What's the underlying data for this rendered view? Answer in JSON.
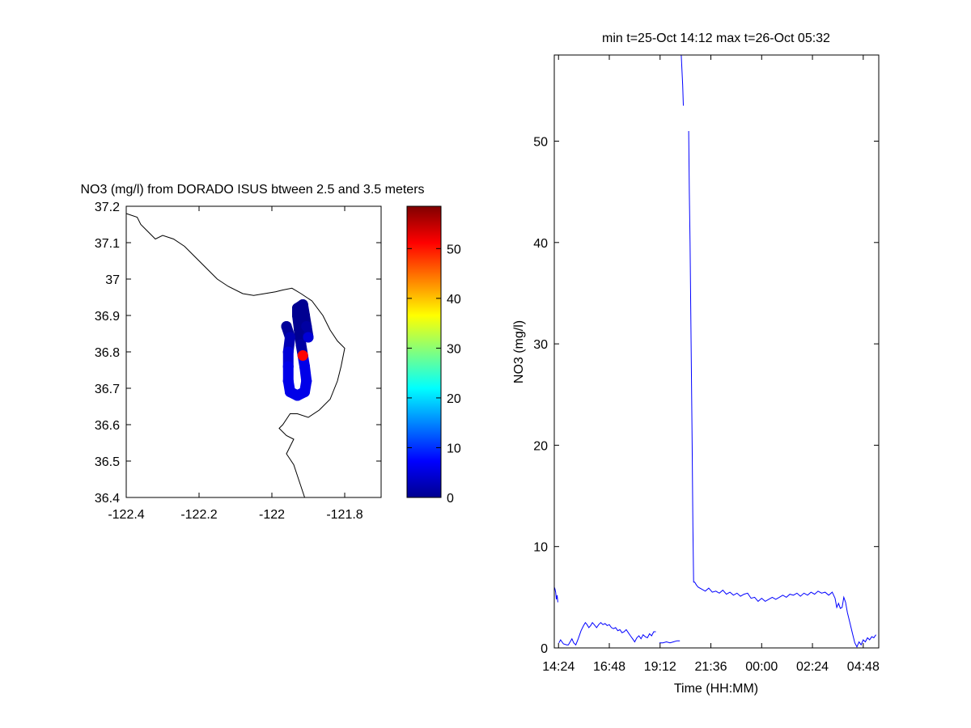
{
  "chart_data": [
    {
      "type": "scatter",
      "title": "NO3 (mg/l) from DORADO ISUS btween 2.5 and 3.5 meters",
      "xlabel": "",
      "ylabel": "",
      "xlim": [
        -122.4,
        -121.7
      ],
      "ylim": [
        36.4,
        37.2
      ],
      "xticks": [
        -122.4,
        -122.2,
        -122.0,
        -121.8
      ],
      "xtick_labels": [
        "-122.4",
        "-122.2",
        "-122",
        "-121.8"
      ],
      "yticks": [
        36.4,
        36.5,
        36.6,
        36.7,
        36.8,
        36.9,
        37.0,
        37.1,
        37.2
      ],
      "ytick_labels": [
        "36.4",
        "36.5",
        "36.6",
        "36.7",
        "36.8",
        "36.9",
        "37",
        "37.1",
        "37.2"
      ],
      "coastline": [
        [
          -122.4,
          37.18
        ],
        [
          -122.37,
          37.17
        ],
        [
          -122.36,
          37.15
        ],
        [
          -122.34,
          37.13
        ],
        [
          -122.33,
          37.12
        ],
        [
          -122.32,
          37.11
        ],
        [
          -122.3,
          37.12
        ],
        [
          -122.27,
          37.11
        ],
        [
          -122.24,
          37.09
        ],
        [
          -122.21,
          37.06
        ],
        [
          -122.18,
          37.03
        ],
        [
          -122.15,
          37.0
        ],
        [
          -122.12,
          36.98
        ],
        [
          -122.08,
          36.96
        ],
        [
          -122.05,
          36.955
        ],
        [
          -122.02,
          36.96
        ],
        [
          -121.99,
          36.965
        ],
        [
          -121.97,
          36.97
        ],
        [
          -121.945,
          36.975
        ],
        [
          -121.92,
          36.96
        ],
        [
          -121.89,
          36.94
        ],
        [
          -121.86,
          36.9
        ],
        [
          -121.84,
          36.86
        ],
        [
          -121.82,
          36.83
        ],
        [
          -121.8,
          36.81
        ],
        [
          -121.81,
          36.76
        ],
        [
          -121.82,
          36.72
        ],
        [
          -121.84,
          36.67
        ],
        [
          -121.87,
          36.64
        ],
        [
          -121.9,
          36.62
        ],
        [
          -121.93,
          36.63
        ],
        [
          -121.95,
          36.63
        ],
        [
          -121.97,
          36.6
        ],
        [
          -121.98,
          36.59
        ],
        [
          -121.96,
          36.57
        ],
        [
          -121.94,
          36.56
        ],
        [
          -121.95,
          36.54
        ],
        [
          -121.96,
          36.52
        ],
        [
          -121.94,
          36.49
        ],
        [
          -121.93,
          36.46
        ],
        [
          -121.92,
          36.43
        ],
        [
          -121.91,
          36.4
        ]
      ],
      "track": [
        {
          "lon": -121.96,
          "lat": 36.87,
          "no3": 1.5
        },
        {
          "lon": -121.95,
          "lat": 36.84,
          "no3": 3
        },
        {
          "lon": -121.955,
          "lat": 36.8,
          "no3": 5
        },
        {
          "lon": -121.955,
          "lat": 36.76,
          "no3": 6
        },
        {
          "lon": -121.955,
          "lat": 36.72,
          "no3": 6
        },
        {
          "lon": -121.95,
          "lat": 36.69,
          "no3": 6
        },
        {
          "lon": -121.93,
          "lat": 36.68,
          "no3": 6
        },
        {
          "lon": -121.91,
          "lat": 36.69,
          "no3": 6
        },
        {
          "lon": -121.905,
          "lat": 36.72,
          "no3": 6
        },
        {
          "lon": -121.91,
          "lat": 36.76,
          "no3": 6
        },
        {
          "lon": -121.915,
          "lat": 36.79,
          "no3": 51
        },
        {
          "lon": -121.92,
          "lat": 36.82,
          "no3": 2
        },
        {
          "lon": -121.925,
          "lat": 36.86,
          "no3": 1
        },
        {
          "lon": -121.93,
          "lat": 36.9,
          "no3": 1
        },
        {
          "lon": -121.93,
          "lat": 36.92,
          "no3": 1
        },
        {
          "lon": -121.915,
          "lat": 36.93,
          "no3": 1
        },
        {
          "lon": -121.91,
          "lat": 36.9,
          "no3": 1
        },
        {
          "lon": -121.905,
          "lat": 36.87,
          "no3": 2
        },
        {
          "lon": -121.9,
          "lat": 36.84,
          "no3": 5
        }
      ],
      "colorbar": {
        "range": [
          0,
          58.5
        ],
        "ticks": [
          0,
          10,
          20,
          30,
          40,
          50
        ],
        "tick_labels": [
          "0",
          "10",
          "20",
          "30",
          "40",
          "50"
        ],
        "colormap": "jet"
      }
    },
    {
      "type": "line",
      "title": "min t=25-Oct 14:12 max t=26-Oct 05:32",
      "xlabel": "Time (HH:MM)",
      "ylabel": "NO3 (mg/l)",
      "xlim": [
        "14:12",
        "05:32"
      ],
      "ylim": [
        0,
        58.5
      ],
      "xticks": [
        "14:24",
        "16:48",
        "19:12",
        "21:36",
        "00:00",
        "02:24",
        "04:48"
      ],
      "yticks": [
        0,
        10,
        20,
        30,
        40,
        50
      ],
      "ytick_labels": [
        "0",
        "10",
        "20",
        "30",
        "40",
        "50"
      ],
      "series": [
        {
          "color": "#0000ff",
          "segments": [
            [
              [
                "14:12",
                6.0
              ],
              [
                "14:14",
                5.8
              ],
              [
                "14:16",
                5.5
              ],
              [
                "14:18",
                4.8
              ],
              [
                "14:20",
                5.2
              ],
              [
                "14:22",
                4.5
              ]
            ],
            [
              [
                "14:25",
                0.5
              ],
              [
                "14:30",
                0.8
              ],
              [
                "14:38",
                0.4
              ],
              [
                "14:47",
                0.3
              ],
              [
                "14:52",
                0.3
              ],
              [
                "14:57",
                0.6
              ],
              [
                "15:02",
                0.9
              ],
              [
                "15:07",
                0.5
              ],
              [
                "15:13",
                0.3
              ],
              [
                "15:20",
                0.9
              ],
              [
                "15:28",
                1.7
              ],
              [
                "15:35",
                2.2
              ],
              [
                "15:40",
                2.5
              ],
              [
                "15:45",
                2.3
              ],
              [
                "15:50",
                2.0
              ],
              [
                "15:55",
                2.2
              ],
              [
                "16:00",
                2.5
              ],
              [
                "16:05",
                2.3
              ],
              [
                "16:12",
                2.0
              ],
              [
                "16:18",
                2.3
              ],
              [
                "16:24",
                2.5
              ],
              [
                "16:30",
                2.3
              ],
              [
                "16:36",
                2.4
              ],
              [
                "16:42",
                2.2
              ],
              [
                "16:48",
                2.3
              ],
              [
                "16:54",
                2.0
              ],
              [
                "17:00",
                1.9
              ],
              [
                "17:06",
                2.0
              ],
              [
                "17:12",
                1.7
              ],
              [
                "17:18",
                1.8
              ],
              [
                "17:24",
                1.5
              ],
              [
                "17:30",
                1.6
              ],
              [
                "17:36",
                1.8
              ],
              [
                "17:42",
                1.5
              ],
              [
                "17:48",
                1.2
              ],
              [
                "17:54",
                0.9
              ],
              [
                "18:00",
                0.6
              ],
              [
                "18:06",
                1.0
              ],
              [
                "18:12",
                1.2
              ],
              [
                "18:18",
                0.9
              ],
              [
                "18:24",
                1.3
              ],
              [
                "18:30",
                1.1
              ],
              [
                "18:36",
                1.0
              ],
              [
                "18:42",
                1.4
              ],
              [
                "18:48",
                1.2
              ],
              [
                "18:54",
                1.6
              ],
              [
                "19:00",
                1.6
              ]
            ],
            [
              [
                "19:10",
                0.5
              ],
              [
                "19:20",
                0.5
              ],
              [
                "19:30",
                0.6
              ],
              [
                "19:40",
                0.5
              ],
              [
                "19:50",
                0.6
              ],
              [
                "20:00",
                0.7
              ],
              [
                "20:08",
                0.7
              ]
            ],
            [
              [
                "20:12",
                58.5
              ],
              [
                "20:14",
                57.0
              ],
              [
                "20:16",
                55.5
              ],
              [
                "20:18",
                53.5
              ]
            ],
            [
              [
                "20:33",
                51.0
              ],
              [
                "20:35",
                45.0
              ],
              [
                "20:37",
                40.0
              ],
              [
                "20:40",
                30.0
              ],
              [
                "20:43",
                20.0
              ],
              [
                "20:45",
                12.0
              ],
              [
                "20:47",
                6.5
              ],
              [
                "20:50",
                6.5
              ],
              [
                "20:55",
                6.2
              ],
              [
                "21:00",
                6.0
              ],
              [
                "21:10",
                5.8
              ],
              [
                "21:20",
                5.6
              ],
              [
                "21:30",
                5.9
              ],
              [
                "21:40",
                5.5
              ],
              [
                "21:50",
                5.6
              ],
              [
                "22:00",
                5.4
              ],
              [
                "22:10",
                5.7
              ],
              [
                "22:20",
                5.3
              ],
              [
                "22:30",
                5.5
              ],
              [
                "22:40",
                5.2
              ],
              [
                "22:50",
                5.4
              ],
              [
                "23:00",
                5.1
              ],
              [
                "23:10",
                5.3
              ],
              [
                "23:20",
                5.4
              ],
              [
                "23:30",
                4.9
              ],
              [
                "23:40",
                5.0
              ],
              [
                "23:50",
                4.6
              ],
              [
                "00:00",
                4.9
              ],
              [
                "00:10",
                4.6
              ],
              [
                "00:20",
                4.8
              ],
              [
                "00:30",
                5.0
              ],
              [
                "00:40",
                4.8
              ],
              [
                "00:50",
                5.0
              ],
              [
                "01:00",
                5.2
              ],
              [
                "01:10",
                5.0
              ],
              [
                "01:20",
                5.3
              ],
              [
                "01:30",
                5.2
              ],
              [
                "01:40",
                5.4
              ],
              [
                "01:50",
                5.1
              ],
              [
                "02:00",
                5.4
              ],
              [
                "02:10",
                5.2
              ],
              [
                "02:20",
                5.5
              ],
              [
                "02:30",
                5.3
              ],
              [
                "02:40",
                5.6
              ],
              [
                "02:50",
                5.4
              ],
              [
                "03:00",
                5.5
              ],
              [
                "03:10",
                5.2
              ],
              [
                "03:20",
                5.5
              ],
              [
                "03:28",
                4.9
              ],
              [
                "03:33",
                4.0
              ],
              [
                "03:38",
                4.4
              ],
              [
                "03:43",
                3.9
              ],
              [
                "03:48",
                4.0
              ],
              [
                "03:53",
                5.0
              ],
              [
                "03:58",
                4.5
              ],
              [
                "04:03",
                3.5
              ],
              [
                "04:10",
                2.5
              ],
              [
                "04:17",
                1.5
              ],
              [
                "04:24",
                0.5
              ],
              [
                "04:30",
                0.1
              ],
              [
                "04:36",
                0.6
              ],
              [
                "04:42",
                0.3
              ],
              [
                "04:48",
                0.8
              ],
              [
                "04:54",
                0.6
              ],
              [
                "05:00",
                1.0
              ],
              [
                "05:06",
                0.8
              ],
              [
                "05:12",
                1.1
              ],
              [
                "05:18",
                1.0
              ],
              [
                "05:24",
                1.3
              ]
            ]
          ]
        }
      ]
    }
  ]
}
